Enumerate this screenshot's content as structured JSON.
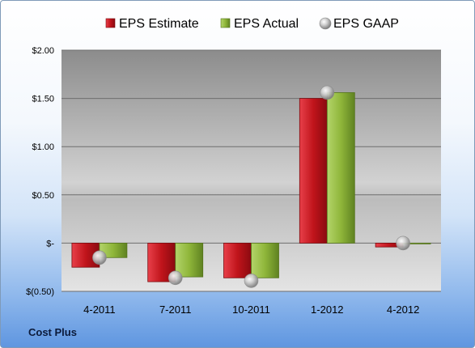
{
  "company_label": "Cost Plus",
  "chart_data": {
    "type": "bar",
    "categories": [
      "4-2011",
      "7-2011",
      "10-2011",
      "1-2012",
      "4-2012"
    ],
    "series": [
      {
        "name": "EPS Estimate",
        "kind": "bar",
        "color": "#c0141b",
        "values": [
          -0.25,
          -0.4,
          -0.36,
          1.5,
          -0.04
        ]
      },
      {
        "name": "EPS Actual",
        "kind": "bar",
        "color": "#8fb63a",
        "values": [
          -0.15,
          -0.35,
          -0.36,
          1.56,
          0.0
        ]
      },
      {
        "name": "EPS GAAP",
        "kind": "marker",
        "color": "#a9a9a9",
        "values": [
          -0.15,
          -0.36,
          -0.39,
          1.56,
          0.0
        ]
      }
    ],
    "ylim": [
      -0.5,
      2.0
    ],
    "yticks": [
      {
        "value": 2.0,
        "label": "$2.00"
      },
      {
        "value": 1.5,
        "label": "$1.50"
      },
      {
        "value": 1.0,
        "label": "$1.00"
      },
      {
        "value": 0.5,
        "label": "$0.50"
      },
      {
        "value": 0.0,
        "label": "$-"
      },
      {
        "value": -0.5,
        "label": "$(0.50)"
      }
    ],
    "legend_position": "top",
    "grid": true
  }
}
